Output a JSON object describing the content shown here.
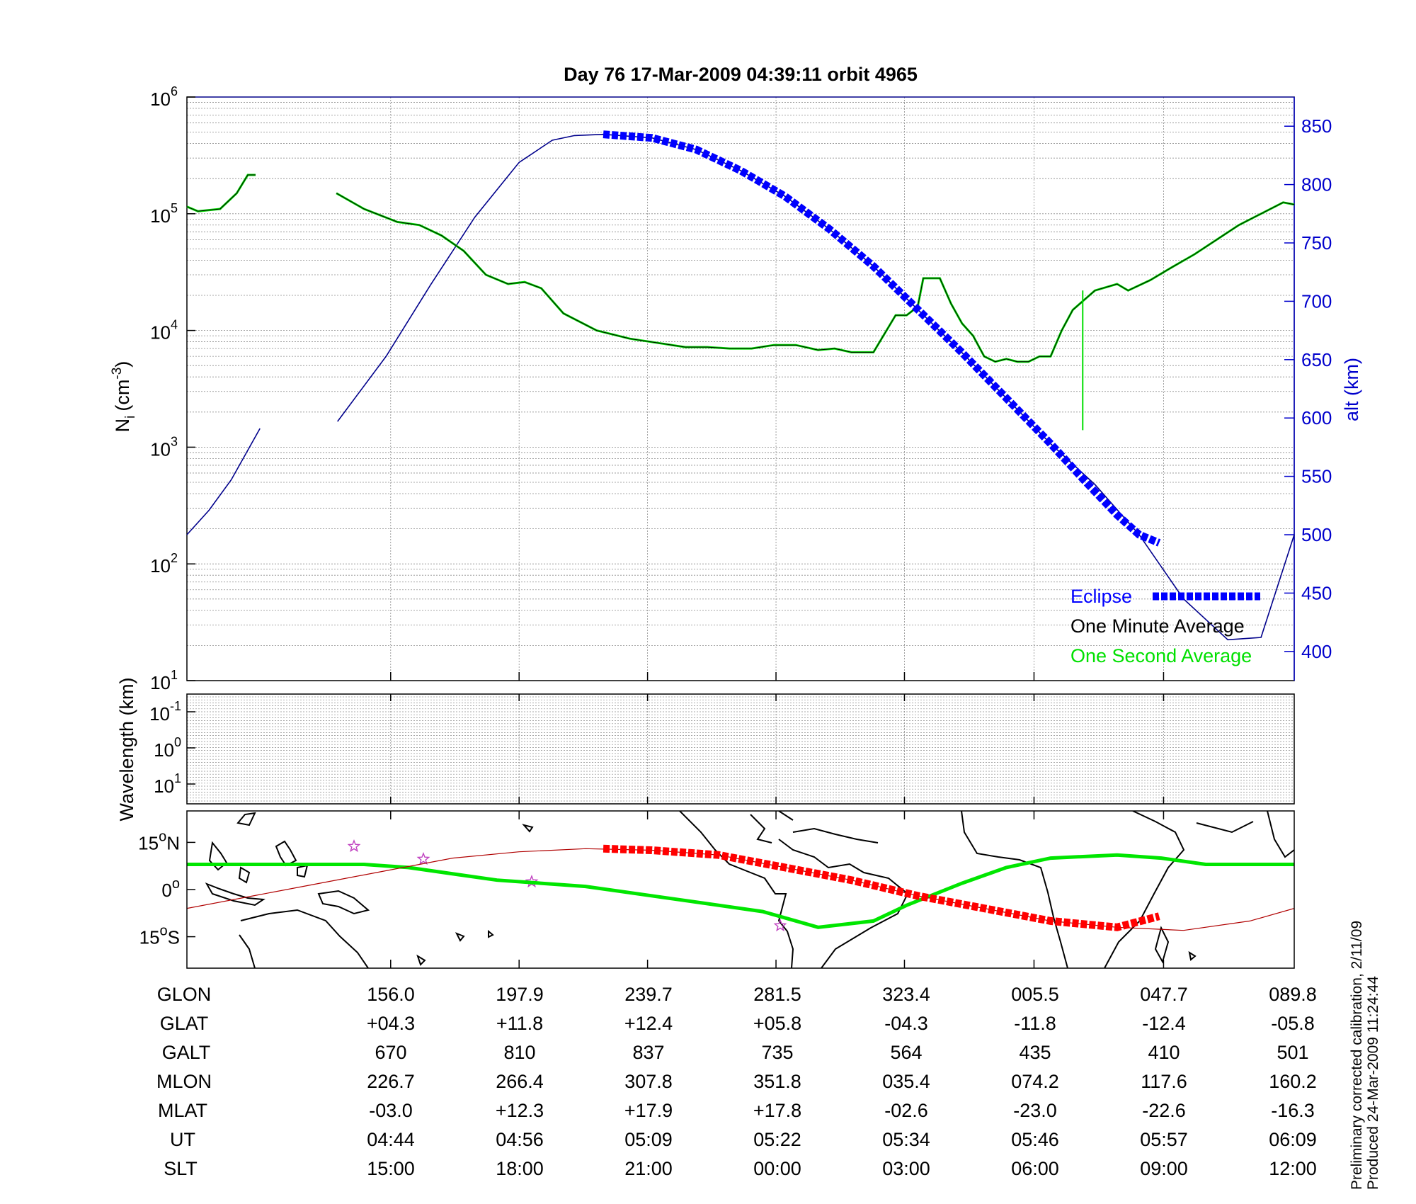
{
  "chart_data": [
    {
      "type": "line",
      "title": "Day 76  17-Mar-2009 04:39:11   orbit 4965",
      "ylabel": "N",
      "ylabel_sub": "i",
      "ylabel_units_prefix": "(cm",
      "ylabel_units_exp": "-3",
      "ylabel_units_suffix": ")",
      "yscale": "log",
      "ylim": [
        10,
        1000000
      ],
      "y_ticks": [
        {
          "base": "10",
          "exp": "1",
          "value": 10
        },
        {
          "base": "10",
          "exp": "2",
          "value": 100
        },
        {
          "base": "10",
          "exp": "3",
          "value": 1000
        },
        {
          "base": "10",
          "exp": "4",
          "value": 10000
        },
        {
          "base": "10",
          "exp": "5",
          "value": 100000
        },
        {
          "base": "10",
          "exp": "6",
          "value": 1000000
        }
      ],
      "y2label": "alt (km)",
      "y2lim": [
        375,
        875
      ],
      "y2_ticks": [
        "400",
        "450",
        "500",
        "550",
        "600",
        "650",
        "700",
        "750",
        "800",
        "850"
      ],
      "xlim": [
        0,
        1
      ],
      "grid": true,
      "legend_position": "bottom-right",
      "series": [
        {
          "name": "Eclipse",
          "color": "#0000ff",
          "style": "thick-dashed",
          "axis": "y2",
          "x": [
            0.376,
            0.42,
            0.46,
            0.5,
            0.54,
            0.58,
            0.62,
            0.66,
            0.7,
            0.74,
            0.78,
            0.81,
            0.84,
            0.86,
            0.878
          ],
          "values": [
            843,
            840,
            830,
            812,
            790,
            762,
            730,
            693,
            656,
            617,
            578,
            547,
            517,
            500,
            493
          ]
        },
        {
          "name": "One Minute Average",
          "color": "#000000",
          "axis": "y1",
          "segments": [
            {
              "x": [
                0.0,
                0.01,
                0.03,
                0.045,
                0.055,
                0.062
              ],
              "values": [
                115000,
                105000,
                110000,
                150000,
                215000,
                215000
              ]
            },
            {
              "x": [
                0.135,
                0.16,
                0.19,
                0.21,
                0.23,
                0.25,
                0.27,
                0.29,
                0.305,
                0.32,
                0.34,
                0.37,
                0.4,
                0.43,
                0.45,
                0.47,
                0.49,
                0.51,
                0.53,
                0.55,
                0.57,
                0.585,
                0.6,
                0.62,
                0.64,
                0.65,
                0.66,
                0.665,
                0.68,
                0.69,
                0.7,
                0.71,
                0.72,
                0.73,
                0.74,
                0.75,
                0.76,
                0.77,
                0.78,
                0.79,
                0.8,
                0.82,
                0.84,
                0.85,
                0.87,
                0.89,
                0.91,
                0.93,
                0.95,
                0.97,
                0.99,
                1.0
              ],
              "values": [
                150000,
                110000,
                85000,
                80000,
                65000,
                48000,
                30000,
                25000,
                26000,
                23000,
                14000,
                10000,
                8500,
                7700,
                7200,
                7200,
                7000,
                7000,
                7500,
                7500,
                6800,
                7000,
                6500,
                6500,
                13500,
                13500,
                16000,
                28000,
                28000,
                17000,
                11500,
                9000,
                6000,
                5400,
                5700,
                5400,
                5400,
                6000,
                6000,
                10000,
                15000,
                22000,
                25000,
                22000,
                27000,
                35000,
                45000,
                60000,
                80000,
                100000,
                125000,
                120000
              ]
            }
          ]
        },
        {
          "name": "One Second Average",
          "color": "#00ff00",
          "axis": "y1",
          "spike": {
            "x": 0.809,
            "values": [
              22000,
              1400
            ]
          }
        },
        {
          "name": "",
          "color": "#00008b",
          "axis": "y2",
          "note": "satellite altitude",
          "segments": [
            {
              "x": [
                0.0,
                0.02,
                0.04,
                0.066
              ],
              "values": [
                500,
                521,
                547,
                591
              ]
            },
            {
              "x": [
                0.136,
                0.18,
                0.22,
                0.26,
                0.3,
                0.33,
                0.35,
                0.376,
                0.42,
                0.46,
                0.5,
                0.54,
                0.58,
                0.62,
                0.66,
                0.7,
                0.74,
                0.78,
                0.82,
                0.86,
                0.9,
                0.94,
                0.97,
                1.0
              ],
              "values": [
                597,
                653,
                714,
                772,
                819,
                838,
                842,
                843,
                840,
                830,
                812,
                790,
                762,
                730,
                693,
                656,
                617,
                578,
                543,
                500,
                445,
                410,
                412,
                500
              ]
            }
          ]
        }
      ]
    },
    {
      "type": "heatmap",
      "ylabel": "Wavelength (km)",
      "yscale": "log",
      "y_ticks": [
        {
          "base": "10",
          "exp": "-1"
        },
        {
          "base": "10",
          "exp": "0"
        },
        {
          "base": "10",
          "exp": "1"
        }
      ],
      "grid": true
    },
    {
      "type": "line",
      "subtype": "map",
      "y_ticks": [
        {
          "label": "15",
          "suffix": "N",
          "value": 15
        },
        {
          "label": "0",
          "suffix": "",
          "value": 0
        },
        {
          "label": "15",
          "suffix": "S",
          "value": -15
        }
      ],
      "ylim": [
        -25,
        25
      ],
      "series": [
        {
          "name": "",
          "color": "#00e600",
          "note": "magnetic equator",
          "x": [
            0.0,
            0.08,
            0.16,
            0.2,
            0.28,
            0.36,
            0.44,
            0.52,
            0.57,
            0.62,
            0.65,
            0.7,
            0.74,
            0.78,
            0.84,
            0.88,
            0.92,
            0.96,
            1.0
          ],
          "values": [
            8,
            8,
            8,
            7,
            3,
            1,
            -3,
            -7,
            -12,
            -10,
            -5,
            2,
            7,
            10,
            11,
            10,
            8,
            8,
            8
          ]
        },
        {
          "name": "",
          "color": "#b00000",
          "note": "ground track",
          "x": [
            0.0,
            0.06,
            0.12,
            0.18,
            0.24,
            0.3,
            0.36,
            0.42,
            0.48,
            0.54,
            0.6,
            0.66,
            0.72,
            0.78,
            0.84,
            0.9,
            0.96,
            1.0
          ],
          "values": [
            -6,
            -2,
            2,
            6,
            10,
            12,
            13,
            12.5,
            11,
            7,
            3,
            -2,
            -6,
            -10,
            -12,
            -13,
            -10,
            -6
          ]
        },
        {
          "name": "",
          "color": "#ff0000",
          "style": "thick-dashed",
          "note": "eclipse on ground track",
          "x": [
            0.376,
            0.42,
            0.48,
            0.54,
            0.6,
            0.66,
            0.72,
            0.78,
            0.84,
            0.878
          ],
          "values": [
            13,
            12.5,
            11,
            7,
            3,
            -2,
            -6,
            -10,
            -12,
            -8.5
          ]
        }
      ]
    }
  ],
  "legend": [
    {
      "label": "Eclipse",
      "color": "#0000ff"
    },
    {
      "label": "One Minute Average",
      "color": "#000000"
    },
    {
      "label": "One Second Average",
      "color": "#00ff00"
    }
  ],
  "table": {
    "rows": [
      {
        "label": "GLON",
        "values": [
          "156.0",
          "197.9",
          "239.7",
          "281.5",
          "323.4",
          "005.5",
          "047.7",
          "089.8"
        ]
      },
      {
        "label": "GLAT",
        "values": [
          "+04.3",
          "+11.8",
          "+12.4",
          "+05.8",
          "-04.3",
          "-11.8",
          "-12.4",
          "-05.8"
        ]
      },
      {
        "label": "GALT",
        "values": [
          "670",
          "810",
          "837",
          "735",
          "564",
          "435",
          "410",
          "501"
        ]
      },
      {
        "label": "MLON",
        "values": [
          "226.7",
          "266.4",
          "307.8",
          "351.8",
          "035.4",
          "074.2",
          "117.6",
          "160.2"
        ]
      },
      {
        "label": "MLAT",
        "values": [
          "-03.0",
          "+12.3",
          "+17.9",
          "+17.8",
          "-02.6",
          "-23.0",
          "-22.6",
          "-16.3"
        ]
      },
      {
        "label": "UT",
        "values": [
          "04:44",
          "04:56",
          "05:09",
          "05:22",
          "05:34",
          "05:46",
          "05:57",
          "06:09"
        ]
      },
      {
        "label": "SLT",
        "values": [
          "15:00",
          "18:00",
          "21:00",
          "00:00",
          "03:00",
          "06:00",
          "09:00",
          "12:00"
        ]
      }
    ]
  },
  "footnote": {
    "line1": "Preliminary corrected calibration, 2/11/09",
    "line2": "Produced 24-Mar-2009 11:24:44"
  },
  "colors": {
    "axis_main": "#000000",
    "axis_right": "#0000cc",
    "grid": "#888888",
    "star": "#c040c0",
    "coast": "#000000"
  }
}
